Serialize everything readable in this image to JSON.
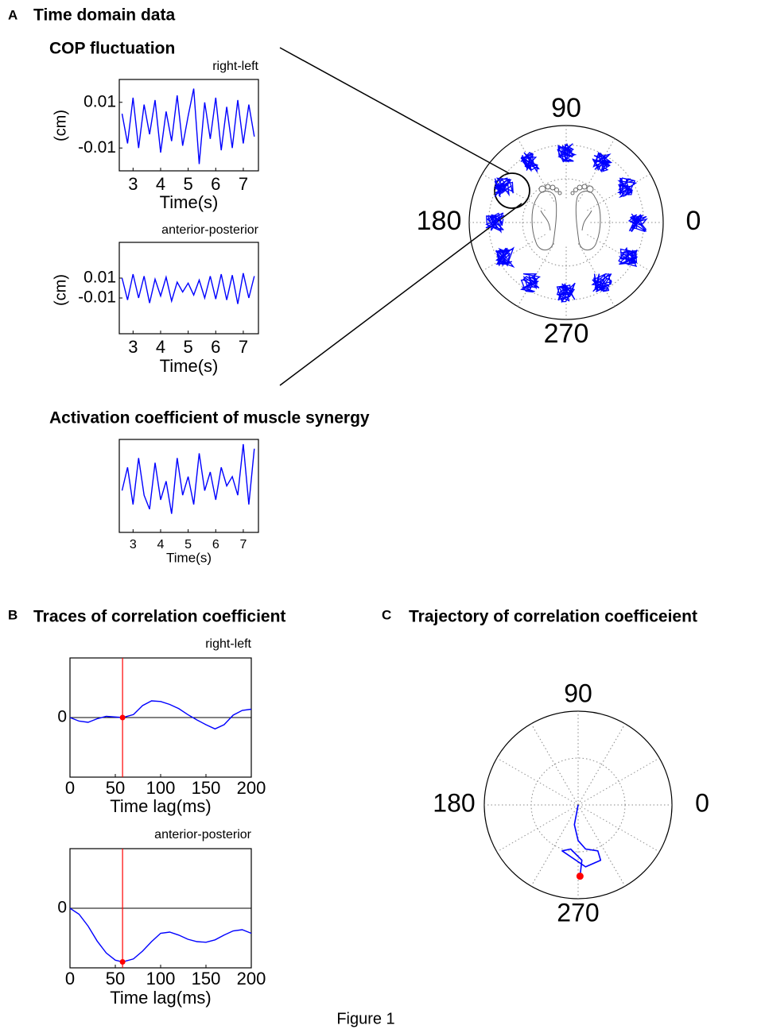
{
  "headings": {
    "panel_a": "A",
    "panel_a_title": "Time domain data",
    "cop": "COP fluctuation",
    "activation": "Activation coefficient of muscle synergy",
    "panel_b": "B",
    "panel_b_title": "Traces of correlation coefficient",
    "panel_c": "C",
    "panel_c_title": "Trajectory of correlation coefficeient",
    "figure": "Figure 1"
  },
  "chart_data": [
    {
      "type": "line",
      "title": "right-left",
      "xlabel": "Time(s)",
      "ylabel": "(cm)",
      "xlim": [
        2.5,
        7.55
      ],
      "xticks": [
        3,
        4,
        5,
        6,
        7
      ],
      "ylim": [
        -0.02,
        0.02
      ],
      "yticks": [
        -0.01,
        0.01
      ],
      "color": "#0000ff",
      "x": [
        2.6,
        2.8,
        3.0,
        3.2,
        3.4,
        3.6,
        3.8,
        4.0,
        4.2,
        4.4,
        4.6,
        4.8,
        5.0,
        5.2,
        5.4,
        5.6,
        5.8,
        6.0,
        6.2,
        6.4,
        6.6,
        6.8,
        7.0,
        7.2,
        7.4
      ],
      "values": [
        0.005,
        -0.008,
        0.012,
        -0.01,
        0.009,
        -0.004,
        0.011,
        -0.012,
        0.006,
        -0.007,
        0.013,
        -0.009,
        0.004,
        0.016,
        -0.017,
        0.01,
        -0.006,
        0.012,
        -0.011,
        0.008,
        -0.01,
        0.011,
        -0.008,
        0.009,
        -0.005
      ]
    },
    {
      "type": "line",
      "title": "anterior-posterior",
      "xlabel": "Time(s)",
      "ylabel": "(cm)",
      "xlim": [
        2.5,
        7.55
      ],
      "xticks": [
        3,
        4,
        5,
        6,
        7
      ],
      "ylim": [
        -0.046,
        0.046
      ],
      "yticks": [
        -0.01,
        0.01
      ],
      "color": "#0000ff",
      "x": [
        2.6,
        2.8,
        3.0,
        3.2,
        3.4,
        3.6,
        3.8,
        4.0,
        4.2,
        4.4,
        4.6,
        4.8,
        5.0,
        5.2,
        5.4,
        5.6,
        5.8,
        6.0,
        6.2,
        6.4,
        6.6,
        6.8,
        7.0,
        7.2,
        7.4
      ],
      "values": [
        0.01,
        -0.012,
        0.014,
        -0.01,
        0.012,
        -0.015,
        0.009,
        -0.008,
        0.011,
        -0.013,
        0.006,
        -0.004,
        0.005,
        -0.007,
        0.008,
        -0.01,
        0.012,
        -0.011,
        0.014,
        -0.012,
        0.013,
        -0.016,
        0.015,
        -0.01,
        0.012
      ]
    },
    {
      "type": "line",
      "xlabel": "Time(s)",
      "xlim": [
        2.5,
        7.55
      ],
      "xticks": [
        3,
        4,
        5,
        6,
        7
      ],
      "ylim": [
        0,
        1
      ],
      "yticks": [],
      "color": "#0000ff",
      "x": [
        2.6,
        2.8,
        3.0,
        3.2,
        3.4,
        3.6,
        3.8,
        4.0,
        4.2,
        4.4,
        4.6,
        4.8,
        5.0,
        5.2,
        5.4,
        5.6,
        5.8,
        6.0,
        6.2,
        6.4,
        6.6,
        6.8,
        7.0,
        7.2,
        7.4
      ],
      "values": [
        0.45,
        0.7,
        0.3,
        0.8,
        0.4,
        0.25,
        0.75,
        0.35,
        0.55,
        0.2,
        0.8,
        0.4,
        0.6,
        0.3,
        0.85,
        0.45,
        0.65,
        0.35,
        0.7,
        0.5,
        0.6,
        0.4,
        0.95,
        0.3,
        0.9
      ]
    },
    {
      "type": "polar-map",
      "theta_ticks": [
        0,
        90,
        180,
        270
      ]
    },
    {
      "type": "line",
      "title": "right-left",
      "xlabel": "Time lag(ms)",
      "xlim": [
        0,
        200
      ],
      "xticks": [
        0,
        50,
        100,
        150,
        200
      ],
      "ylim": [
        -1,
        1
      ],
      "yticks": [
        0
      ],
      "grid": true,
      "color": "#0000ff",
      "vline": 58,
      "marker_y": 0,
      "x": [
        0,
        10,
        20,
        30,
        40,
        58,
        70,
        80,
        90,
        100,
        110,
        120,
        130,
        140,
        150,
        160,
        170,
        180,
        190,
        200
      ],
      "values": [
        0,
        -0.06,
        -0.08,
        -0.02,
        0.02,
        0,
        0.05,
        0.2,
        0.28,
        0.27,
        0.22,
        0.15,
        0.05,
        -0.04,
        -0.12,
        -0.19,
        -0.12,
        0.04,
        0.12,
        0.14
      ]
    },
    {
      "type": "line",
      "title": "anterior-posterior",
      "xlabel": "Time lag(ms)",
      "xlim": [
        0,
        200
      ],
      "xticks": [
        0,
        50,
        100,
        150,
        200
      ],
      "ylim": [
        -1,
        1
      ],
      "yticks": [
        0
      ],
      "grid": true,
      "color": "#0000ff",
      "vline": 58,
      "marker_y": -0.9,
      "x": [
        0,
        10,
        20,
        30,
        40,
        50,
        58,
        70,
        80,
        90,
        100,
        110,
        120,
        130,
        140,
        150,
        160,
        170,
        180,
        190,
        200
      ],
      "values": [
        0,
        -0.1,
        -0.3,
        -0.55,
        -0.75,
        -0.87,
        -0.9,
        -0.85,
        -0.72,
        -0.56,
        -0.42,
        -0.4,
        -0.45,
        -0.52,
        -0.56,
        -0.57,
        -0.53,
        -0.45,
        -0.38,
        -0.36,
        -0.42
      ]
    },
    {
      "type": "polar-trajectory",
      "theta_ticks": [
        0,
        90,
        180,
        270
      ],
      "rlim": [
        0,
        1
      ],
      "color": "#0000ff",
      "x": [
        0,
        -0.04,
        0,
        0.08,
        0.21,
        0.24,
        0.08,
        -0.17,
        -0.08,
        0.04,
        0.02
      ],
      "y": [
        0,
        -0.21,
        -0.38,
        -0.47,
        -0.49,
        -0.59,
        -0.66,
        -0.49,
        -0.47,
        -0.59,
        -0.76
      ]
    }
  ]
}
